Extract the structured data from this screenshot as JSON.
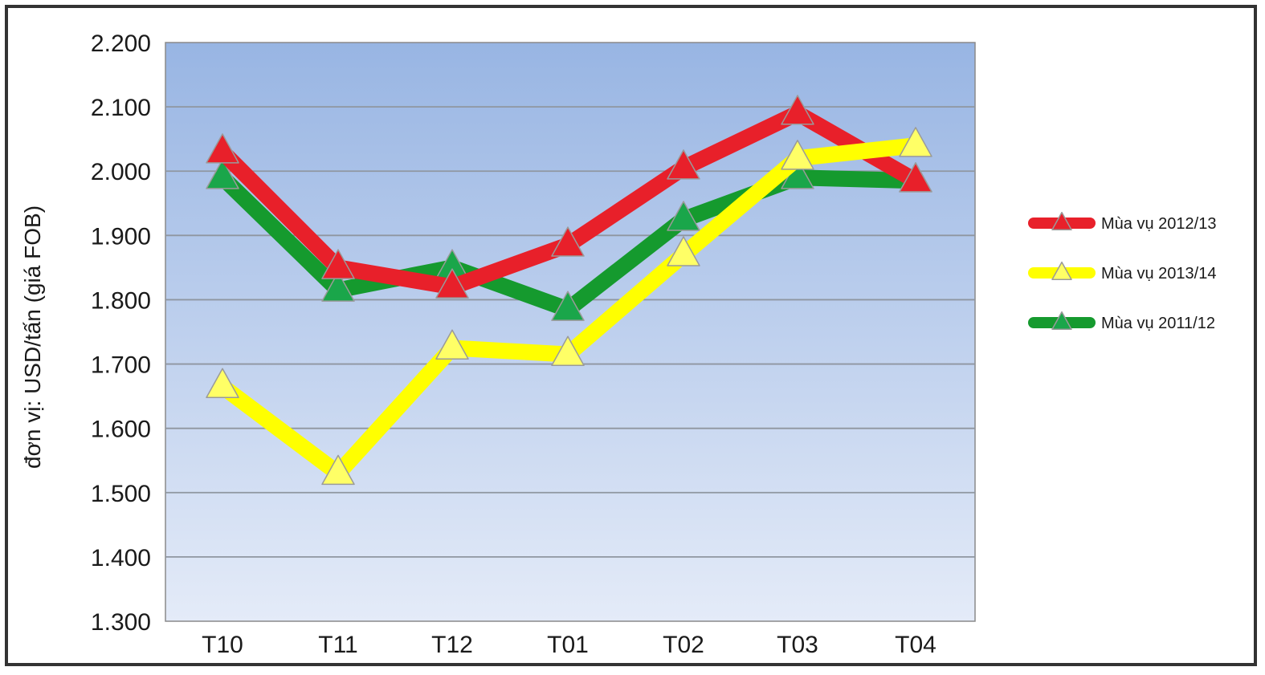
{
  "chart_data": {
    "type": "line",
    "title": "",
    "xlabel": "",
    "ylabel": "đơn vị: USD/tấn (giá FOB)",
    "categories": [
      "T10",
      "T11",
      "T12",
      "T01",
      "T02",
      "T03",
      "T04"
    ],
    "ylim": [
      1300,
      2200
    ],
    "yticks": [
      1300,
      1400,
      1500,
      1600,
      1700,
      1800,
      1900,
      2000,
      2100,
      2200
    ],
    "ytick_labels": [
      "1.300",
      "1.400",
      "1.500",
      "1.600",
      "1.700",
      "1.800",
      "1.900",
      "2.000",
      "2.100",
      "2.200"
    ],
    "grid": true,
    "legend_position": "right",
    "marker": "triangle",
    "series": [
      {
        "name": "Mùa vụ 2012/13",
        "color": "#e8202a",
        "marker_color": "#e8202a",
        "values": [
          2030,
          1850,
          1820,
          1885,
          2005,
          2090,
          1985
        ]
      },
      {
        "name": "Mùa vụ 2013/14",
        "color": "#ffff00",
        "marker_color": "#ffff66",
        "values": [
          1665,
          1530,
          1725,
          1715,
          1870,
          2020,
          2040
        ]
      },
      {
        "name": "Mùa vụ 2011/12",
        "color": "#159a2e",
        "marker_color": "#1aa64a",
        "values": [
          1990,
          1815,
          1850,
          1785,
          1925,
          1990,
          1985
        ]
      }
    ],
    "draw_order": [
      2,
      0,
      1
    ]
  }
}
